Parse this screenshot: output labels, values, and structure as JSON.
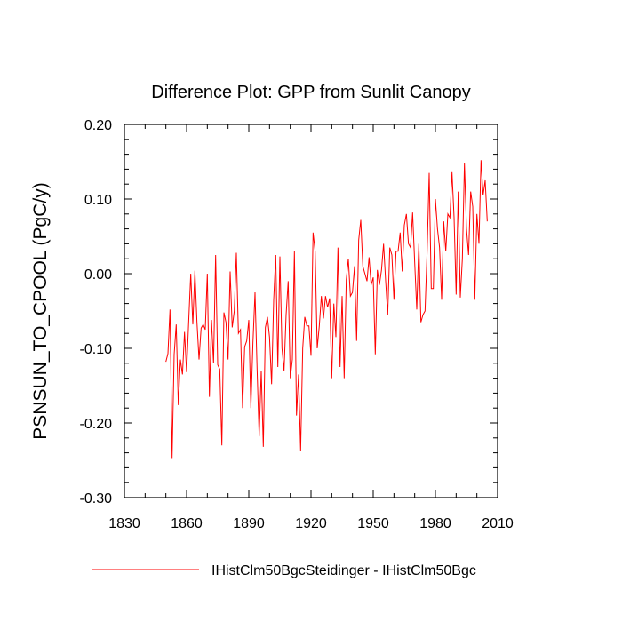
{
  "chart_data": {
    "type": "line",
    "title": "Difference Plot: GPP from Sunlit Canopy",
    "xlabel": "",
    "ylabel": "PSNSUN_TO_CPOOL  (PgC/y)",
    "xlim": [
      1830,
      2010
    ],
    "ylim": [
      -0.3,
      0.2
    ],
    "x_ticks": [
      1830,
      1860,
      1890,
      1920,
      1950,
      1980,
      2010
    ],
    "x_tick_labels": [
      "1830",
      "1860",
      "1890",
      "1920",
      "1950",
      "1980",
      "2010"
    ],
    "y_ticks": [
      -0.3,
      -0.2,
      -0.1,
      0.0,
      0.1,
      0.2
    ],
    "y_tick_labels": [
      "-0.30",
      "-0.20",
      "-0.10",
      "0.00",
      "0.10",
      "0.20"
    ],
    "grid": false,
    "legend_position": "bottom",
    "series": [
      {
        "name": "IHistClm50BgcSteidinger - IHistClm50Bgc",
        "color": "#ff0000",
        "x_start": 1850,
        "x_step": 1,
        "values": [
          -0.118,
          -0.107,
          -0.048,
          -0.247,
          -0.108,
          -0.068,
          -0.176,
          -0.115,
          -0.135,
          -0.078,
          -0.132,
          -0.065,
          0.0,
          -0.068,
          0.004,
          -0.065,
          -0.115,
          -0.073,
          -0.068,
          -0.075,
          0.0,
          -0.165,
          -0.062,
          -0.12,
          0.025,
          -0.122,
          -0.128,
          -0.23,
          -0.052,
          -0.065,
          -0.115,
          0.003,
          -0.072,
          -0.05,
          0.028,
          -0.08,
          -0.075,
          -0.18,
          -0.098,
          -0.09,
          -0.062,
          -0.18,
          -0.092,
          -0.025,
          -0.128,
          -0.218,
          -0.13,
          -0.232,
          -0.072,
          -0.058,
          -0.085,
          -0.148,
          -0.035,
          0.025,
          -0.125,
          0.023,
          -0.1,
          -0.13,
          -0.055,
          -0.01,
          -0.14,
          -0.115,
          0.03,
          -0.19,
          -0.135,
          -0.237,
          -0.1,
          -0.058,
          -0.07,
          -0.07,
          -0.11,
          0.055,
          0.03,
          -0.1,
          -0.07,
          -0.03,
          -0.06,
          -0.03,
          -0.045,
          -0.033,
          -0.14,
          -0.04,
          -0.085,
          0.035,
          -0.125,
          -0.03,
          -0.14,
          -0.008,
          0.02,
          -0.03,
          -0.025,
          0.01,
          -0.09,
          0.045,
          0.072,
          0.01,
          0.0,
          -0.01,
          0.022,
          -0.015,
          -0.005,
          -0.108,
          0.005,
          -0.015,
          0.005,
          0.04,
          -0.01,
          -0.055,
          0.035,
          0.025,
          -0.035,
          0.03,
          0.03,
          0.055,
          0.003,
          0.065,
          0.08,
          0.04,
          0.035,
          0.082,
          0.015,
          -0.048,
          0.04,
          -0.065,
          -0.055,
          -0.05,
          0.03,
          0.135,
          -0.02,
          -0.02,
          0.1,
          0.06,
          0.035,
          -0.035,
          0.07,
          0.03,
          0.08,
          0.075,
          0.136,
          0.075,
          -0.028,
          0.11,
          -0.032,
          0.02,
          0.148,
          0.06,
          0.025,
          0.11,
          0.09,
          -0.035,
          0.08,
          0.04,
          0.152,
          0.105,
          0.125,
          0.07
        ]
      }
    ]
  }
}
